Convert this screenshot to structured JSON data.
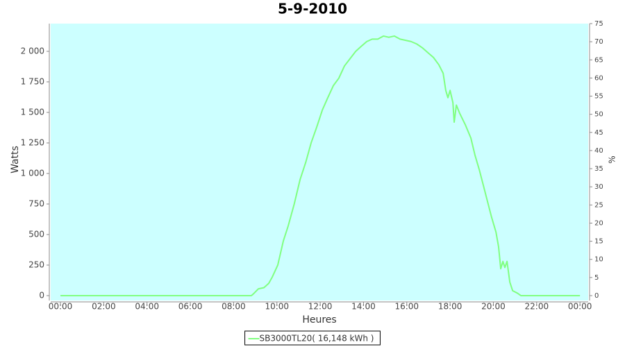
{
  "chart_data": {
    "type": "line",
    "title": "5-9-2010",
    "x_label": "Heures",
    "y_label": "Watts",
    "y2_label": "%",
    "x": [
      0,
      8.75,
      8.82,
      8.92,
      9.14,
      9.4,
      9.62,
      9.78,
      10.04,
      10.3,
      10.52,
      10.8,
      11.07,
      11.33,
      11.58,
      11.84,
      12.1,
      12.35,
      12.61,
      12.86,
      13.12,
      13.38,
      13.64,
      13.89,
      14.15,
      14.4,
      14.66,
      14.92,
      15.17,
      15.43,
      15.69,
      15.95,
      16.2,
      16.46,
      16.71,
      16.97,
      17.23,
      17.48,
      17.68,
      17.8,
      17.9,
      18.0,
      18.13,
      18.19,
      18.29,
      18.45,
      18.7,
      18.96,
      19.15,
      19.35,
      19.54,
      19.73,
      19.92,
      20.12,
      20.24,
      20.34,
      20.44,
      20.53,
      20.63,
      20.76,
      20.89,
      21.11,
      21.27,
      24
    ],
    "series": [
      {
        "name": "SB3000TL20( 16,148 kWh )",
        "color": "#80ff80",
        "values": [
          0,
          0,
          0,
          15,
          55,
          65,
          100,
          150,
          250,
          450,
          570,
          750,
          950,
          1090,
          1250,
          1380,
          1520,
          1620,
          1720,
          1780,
          1880,
          1940,
          2000,
          2040,
          2080,
          2100,
          2100,
          2125,
          2115,
          2125,
          2100,
          2090,
          2080,
          2060,
          2030,
          1990,
          1950,
          1890,
          1820,
          1680,
          1620,
          1680,
          1580,
          1420,
          1560,
          1490,
          1400,
          1290,
          1150,
          1030,
          900,
          770,
          640,
          520,
          400,
          220,
          280,
          230,
          280,
          110,
          40,
          20,
          0,
          0
        ]
      }
    ],
    "xlim": [
      -0.45,
      24.38
    ],
    "xticks": [
      {
        "value": 0,
        "label": "00:00"
      },
      {
        "value": 2,
        "label": "02:00"
      },
      {
        "value": 4,
        "label": "04:00"
      },
      {
        "value": 6,
        "label": "06:00"
      },
      {
        "value": 8,
        "label": "08:00"
      },
      {
        "value": 10,
        "label": "10:00"
      },
      {
        "value": 12,
        "label": "12:00"
      },
      {
        "value": 14,
        "label": "14:00"
      },
      {
        "value": 16,
        "label": "16:00"
      },
      {
        "value": 18,
        "label": "18:00"
      },
      {
        "value": 20,
        "label": "20:00"
      },
      {
        "value": 22,
        "label": "22:00"
      },
      {
        "value": 24,
        "label": "00:00"
      }
    ],
    "ylim": [
      -40,
      2227
    ],
    "yticks": [
      0,
      250,
      500,
      750,
      {
        "value": 1000,
        "label": "1 000"
      },
      {
        "value": 1250,
        "label": "1 250"
      },
      {
        "value": 1500,
        "label": "1 500"
      },
      {
        "value": 1750,
        "label": "1 750"
      },
      {
        "value": 2000,
        "label": "2 000"
      }
    ],
    "y2lim": [
      -1.34,
      75
    ],
    "y2ticks": [
      0,
      5,
      10,
      15,
      20,
      25,
      30,
      35,
      40,
      45,
      50,
      55,
      60,
      65,
      70,
      75
    ],
    "plot_background": "#ccffff"
  }
}
